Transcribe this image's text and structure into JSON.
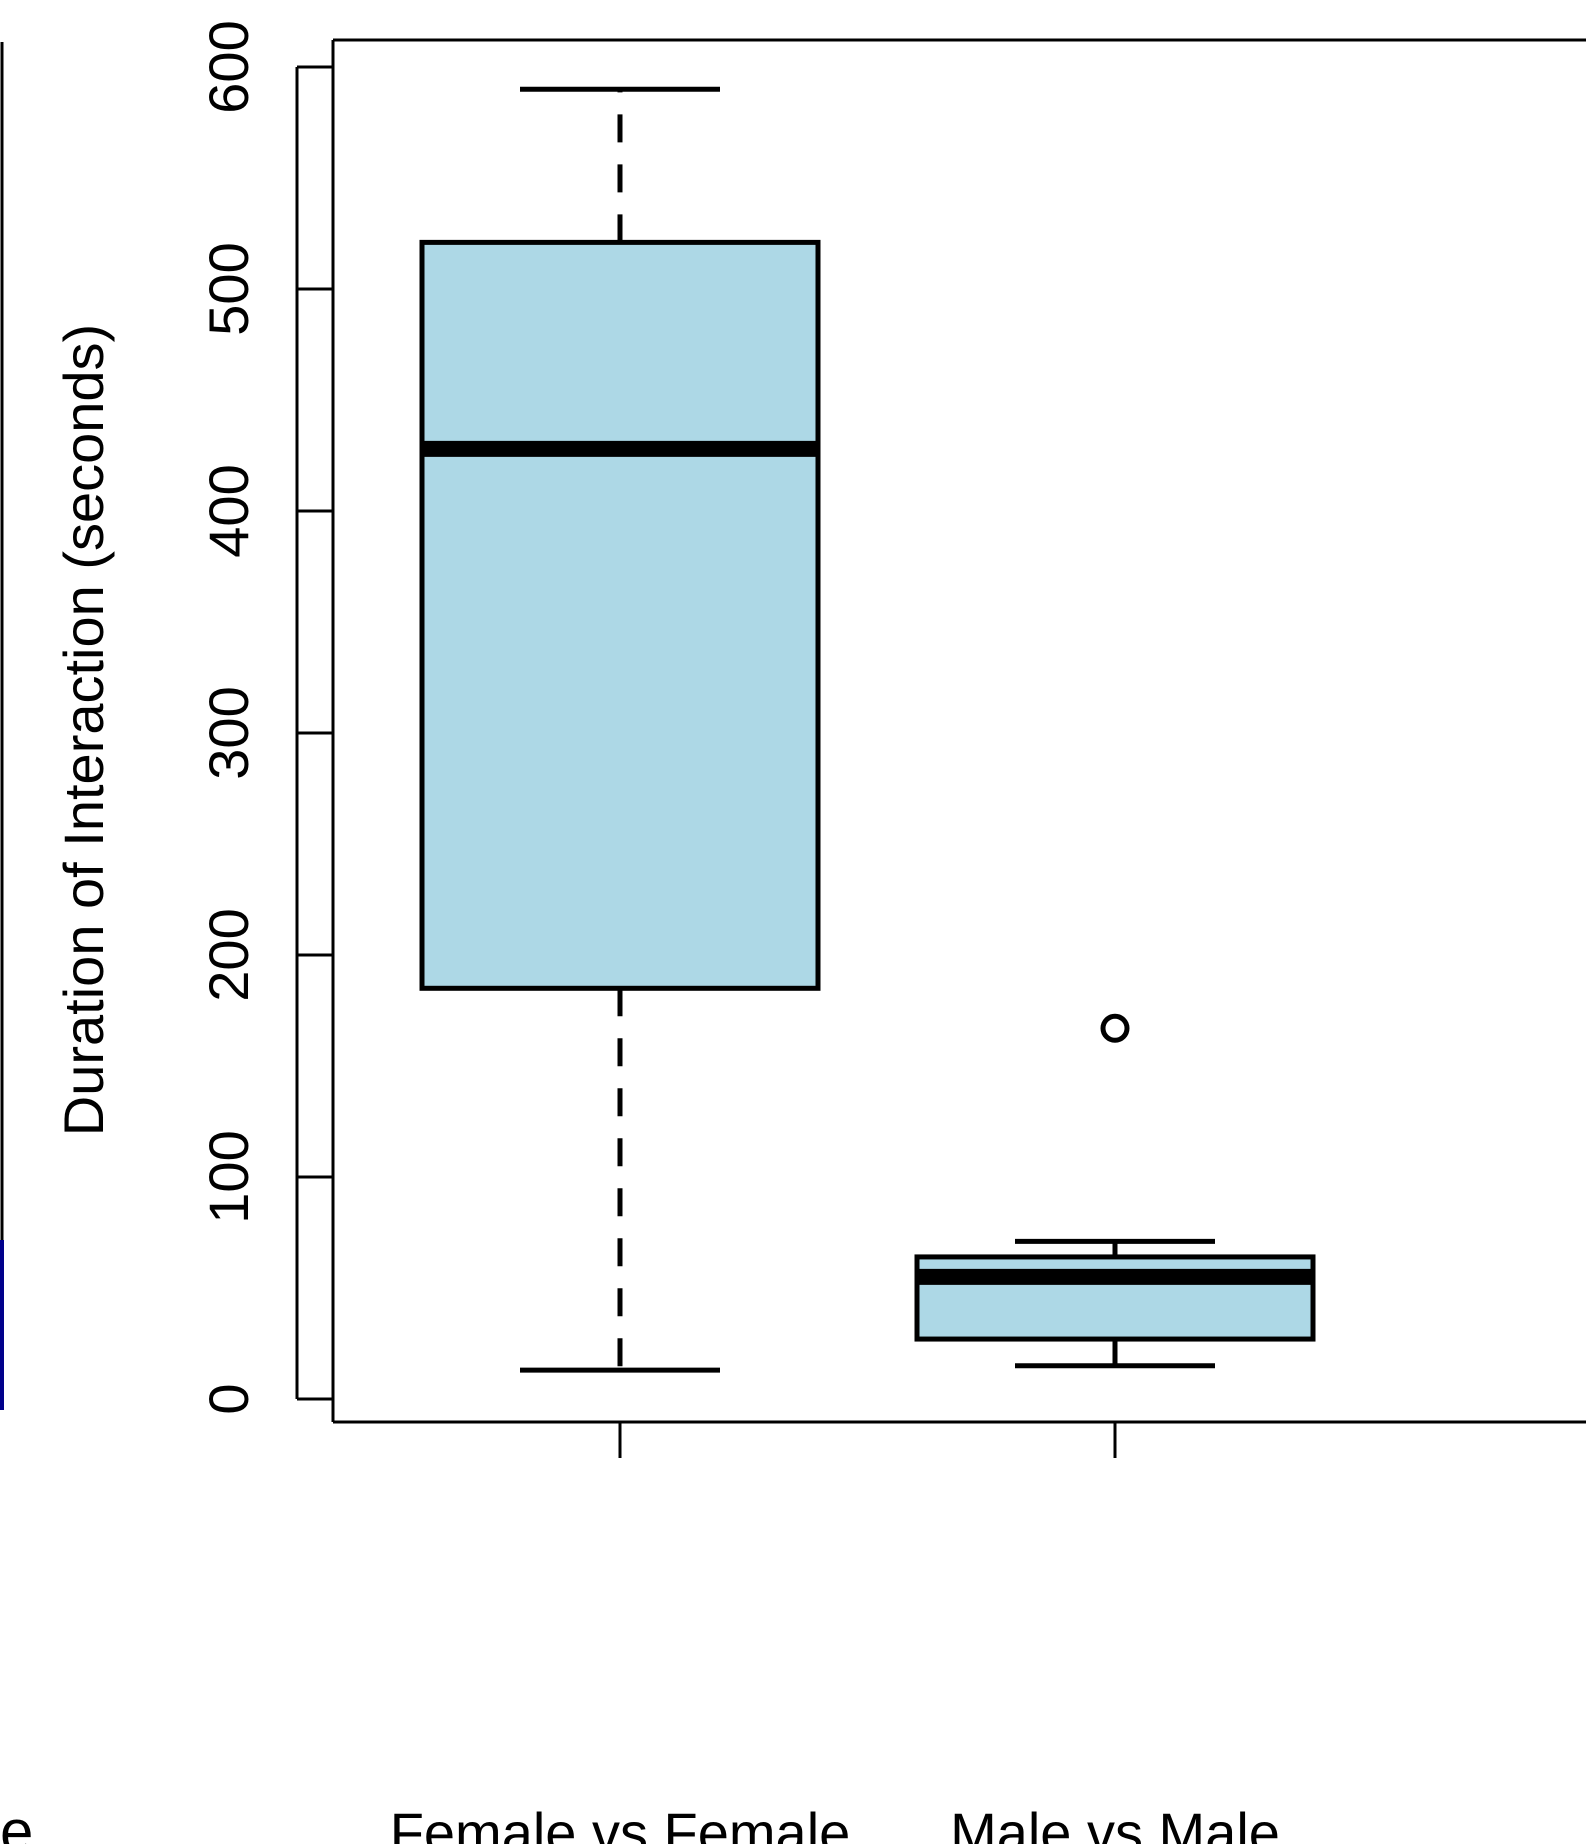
{
  "chart_data": {
    "type": "boxplot",
    "title": "",
    "xlabel": "",
    "ylabel": "Duration of Interaction (seconds)",
    "ylim": [
      0,
      600
    ],
    "y_ticks": [
      0,
      100,
      200,
      300,
      400,
      500,
      600
    ],
    "y_tick_labels": [
      "0",
      "100",
      "200",
      "300",
      "400",
      "500",
      "600"
    ],
    "grid": false,
    "box_fill": "#add8e6",
    "line_color": "#000000",
    "categories": [
      "Female vs Female",
      "Male vs Male"
    ],
    "boxes": [
      {
        "label": "Female vs Female",
        "whisker_low": 13,
        "q1": 185,
        "median": 428,
        "q3": 521,
        "whisker_high": 590,
        "outliers": []
      },
      {
        "label": "Male vs Male",
        "whisker_low": 15,
        "q1": 27,
        "median": 55,
        "q3": 64,
        "whisker_high": 71,
        "outliers": [
          167
        ]
      }
    ],
    "partial_left_panel": {
      "clipped_label": "e"
    }
  }
}
